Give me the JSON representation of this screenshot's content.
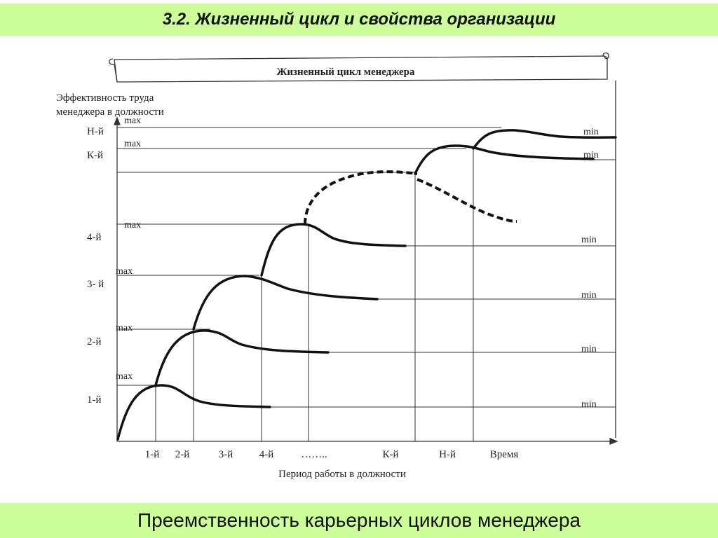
{
  "slide": {
    "title": "3.2. Жизненный цикл и свойства организации",
    "footer": "Преемственность карьерных циклов менеджера"
  },
  "diagram": {
    "scroll_title": "Жизненный цикл менеджера",
    "y_axis_label_line1": "Эффективность труда",
    "y_axis_label_line2": "менеджера в должности",
    "x_axis_label": "Период  работы в должности",
    "level_labels": [
      "Н-й",
      "К-й",
      "4-й",
      "3- й",
      "2-й",
      "1-й"
    ],
    "max_label": "max",
    "min_label": "min",
    "period_labels": [
      "1-й",
      "2-й",
      "3-й",
      "4-й",
      "……..",
      "К-й",
      "Н-й",
      "Время"
    ]
  }
}
